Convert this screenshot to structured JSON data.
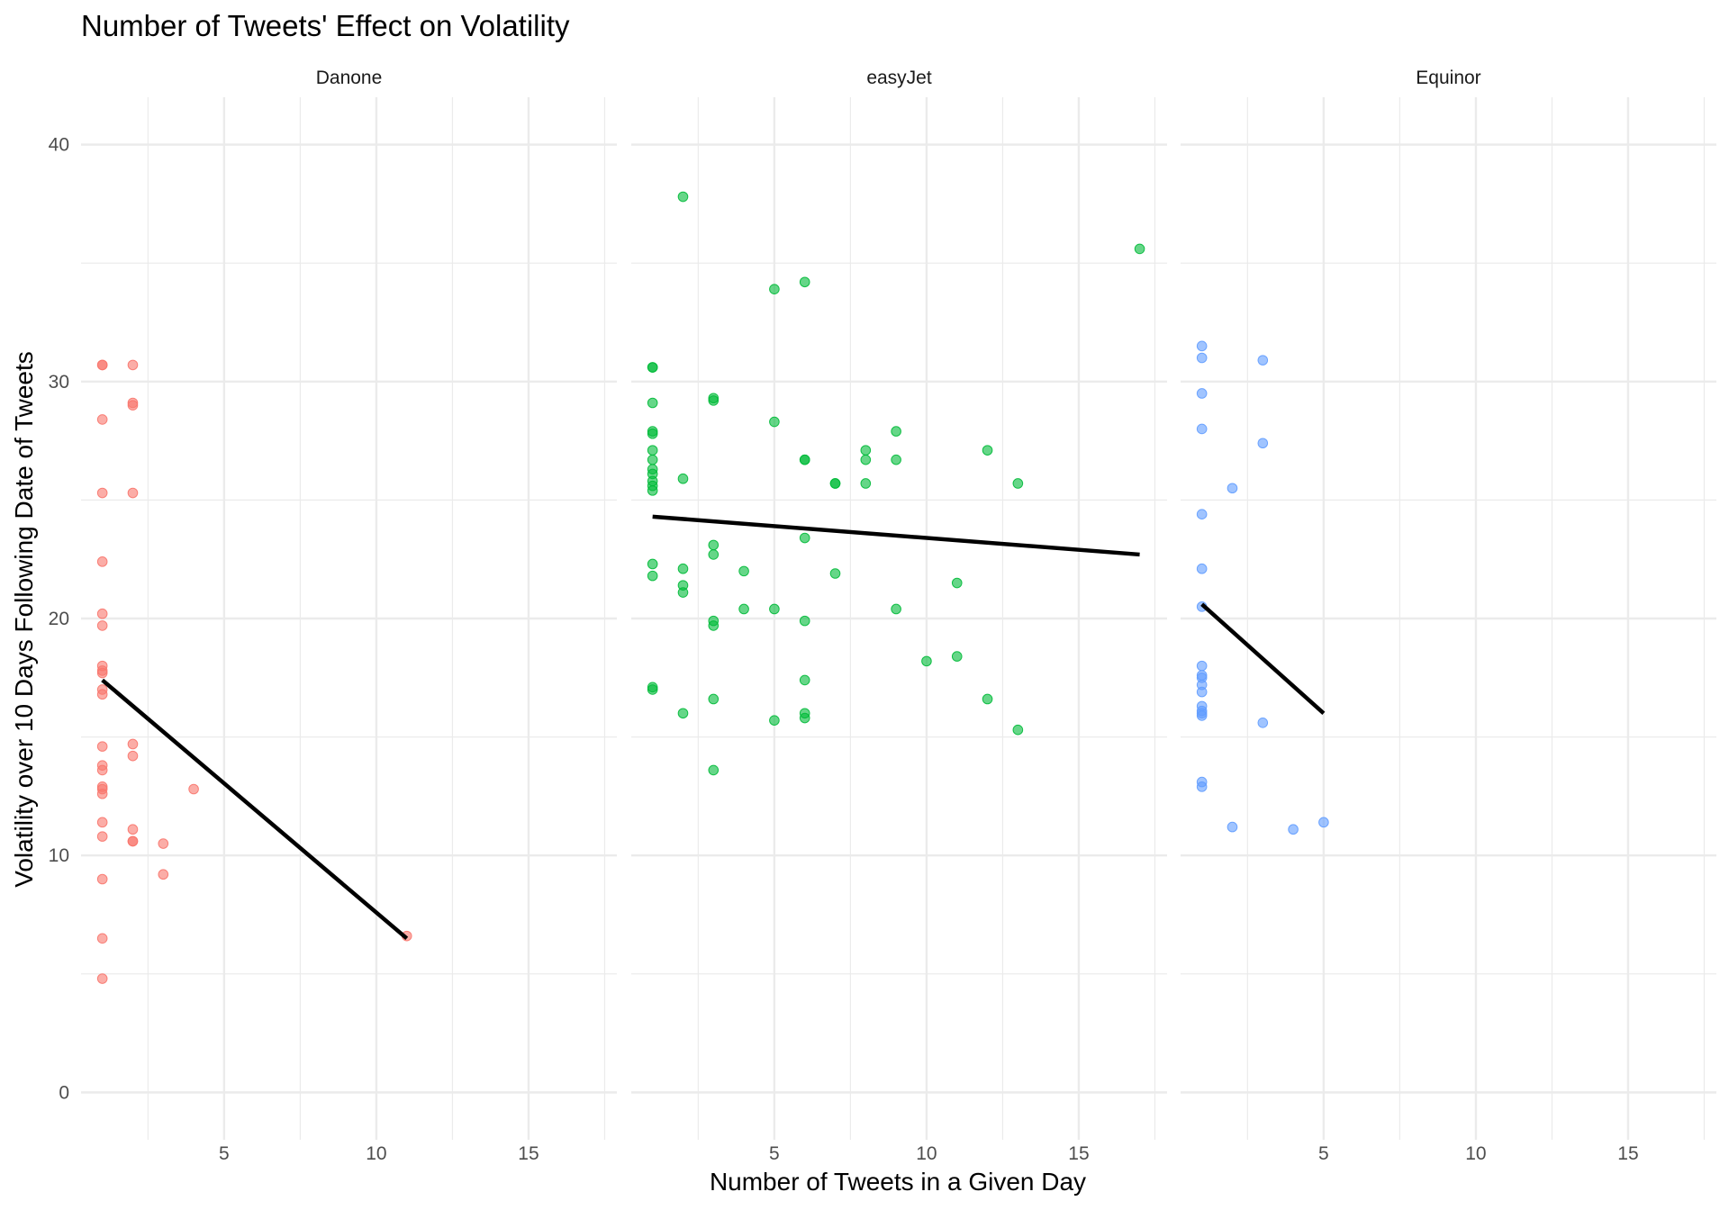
{
  "chart_data": {
    "type": "scatter",
    "title": "Number of Tweets' Effect on Volatility",
    "xlabel": "Number of Tweets in a Given Day",
    "ylabel": "Volatility over 10 Days Following Date of Tweets",
    "xlim": [
      0.3,
      17.9
    ],
    "ylim": [
      -2,
      42
    ],
    "x_ticks": [
      5,
      10,
      15
    ],
    "y_ticks": [
      0,
      10,
      20,
      30,
      40
    ],
    "grid": true,
    "legend": "none",
    "panels": [
      {
        "name": "Danone",
        "color": "#F8766D",
        "points": [
          [
            1,
            30.7
          ],
          [
            1,
            30.7
          ],
          [
            1,
            28.4
          ],
          [
            1,
            25.3
          ],
          [
            1,
            22.4
          ],
          [
            1,
            20.2
          ],
          [
            1,
            19.7
          ],
          [
            1,
            18.0
          ],
          [
            1,
            17.8
          ],
          [
            1,
            17.7
          ],
          [
            1,
            17.0
          ],
          [
            1,
            16.8
          ],
          [
            1,
            14.6
          ],
          [
            1,
            13.8
          ],
          [
            1,
            13.6
          ],
          [
            1,
            12.9
          ],
          [
            1,
            12.8
          ],
          [
            1,
            12.6
          ],
          [
            1,
            11.4
          ],
          [
            1,
            10.8
          ],
          [
            1,
            9.0
          ],
          [
            1,
            6.5
          ],
          [
            1,
            4.8
          ],
          [
            2,
            30.7
          ],
          [
            2,
            29.1
          ],
          [
            2,
            29.0
          ],
          [
            2,
            25.3
          ],
          [
            2,
            14.7
          ],
          [
            2,
            14.2
          ],
          [
            2,
            11.1
          ],
          [
            2,
            10.6
          ],
          [
            2,
            10.6
          ],
          [
            3,
            10.5
          ],
          [
            3,
            9.2
          ],
          [
            4,
            12.8
          ],
          [
            11,
            6.6
          ]
        ],
        "trend": {
          "x": [
            1,
            11
          ],
          "y": [
            17.4,
            6.5
          ]
        }
      },
      {
        "name": "easyJet",
        "color": "#00BA38",
        "points": [
          [
            1,
            30.6
          ],
          [
            1,
            30.6
          ],
          [
            1,
            29.1
          ],
          [
            1,
            27.9
          ],
          [
            1,
            27.8
          ],
          [
            1,
            27.1
          ],
          [
            1,
            26.7
          ],
          [
            1,
            26.3
          ],
          [
            1,
            26.1
          ],
          [
            1,
            25.8
          ],
          [
            1,
            25.6
          ],
          [
            1,
            25.4
          ],
          [
            1,
            22.3
          ],
          [
            1,
            21.8
          ],
          [
            1,
            17.1
          ],
          [
            1,
            17.0
          ],
          [
            2,
            37.8
          ],
          [
            2,
            25.9
          ],
          [
            2,
            22.1
          ],
          [
            2,
            21.4
          ],
          [
            2,
            21.1
          ],
          [
            2,
            16.0
          ],
          [
            3,
            29.3
          ],
          [
            3,
            29.2
          ],
          [
            3,
            23.1
          ],
          [
            3,
            22.7
          ],
          [
            3,
            19.9
          ],
          [
            3,
            19.7
          ],
          [
            3,
            16.6
          ],
          [
            3,
            13.6
          ],
          [
            4,
            22.0
          ],
          [
            4,
            20.4
          ],
          [
            5,
            33.9
          ],
          [
            5,
            28.3
          ],
          [
            5,
            20.4
          ],
          [
            5,
            15.7
          ],
          [
            6,
            34.2
          ],
          [
            6,
            26.7
          ],
          [
            6,
            26.7
          ],
          [
            6,
            23.4
          ],
          [
            6,
            19.9
          ],
          [
            6,
            17.4
          ],
          [
            6,
            16.0
          ],
          [
            6,
            15.8
          ],
          [
            7,
            25.7
          ],
          [
            7,
            25.7
          ],
          [
            7,
            21.9
          ],
          [
            8,
            27.1
          ],
          [
            8,
            26.7
          ],
          [
            8,
            25.7
          ],
          [
            9,
            27.9
          ],
          [
            9,
            26.7
          ],
          [
            9,
            20.4
          ],
          [
            10,
            18.2
          ],
          [
            11,
            21.5
          ],
          [
            11,
            18.4
          ],
          [
            12,
            27.1
          ],
          [
            12,
            16.6
          ],
          [
            13,
            25.7
          ],
          [
            13,
            15.3
          ],
          [
            17,
            35.6
          ]
        ],
        "trend": {
          "x": [
            1,
            17
          ],
          "y": [
            24.3,
            22.7
          ]
        }
      },
      {
        "name": "Equinor",
        "color": "#619CFF",
        "points": [
          [
            1,
            31.5
          ],
          [
            1,
            31.0
          ],
          [
            1,
            29.5
          ],
          [
            1,
            28.0
          ],
          [
            1,
            24.4
          ],
          [
            1,
            22.1
          ],
          [
            1,
            20.5
          ],
          [
            1,
            18.0
          ],
          [
            1,
            17.6
          ],
          [
            1,
            17.5
          ],
          [
            1,
            17.2
          ],
          [
            1,
            16.9
          ],
          [
            1,
            16.3
          ],
          [
            1,
            16.1
          ],
          [
            1,
            16.0
          ],
          [
            1,
            15.9
          ],
          [
            1,
            13.1
          ],
          [
            1,
            12.9
          ],
          [
            2,
            25.5
          ],
          [
            2,
            11.2
          ],
          [
            3,
            30.9
          ],
          [
            3,
            27.4
          ],
          [
            3,
            15.6
          ],
          [
            4,
            11.1
          ],
          [
            5,
            11.4
          ]
        ],
        "trend": {
          "x": [
            1,
            5
          ],
          "y": [
            20.6,
            16.0
          ]
        }
      }
    ]
  }
}
